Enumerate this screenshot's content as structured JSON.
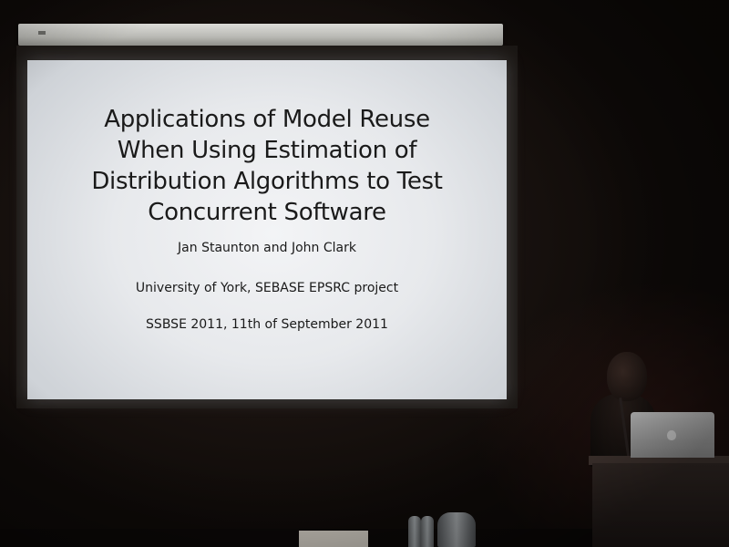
{
  "slide": {
    "title_lines": [
      "Applications of Model Reuse",
      "When Using Estimation of",
      "Distribution Algorithms to Test",
      "Concurrent Software"
    ],
    "authors": "Jan Staunton and John Clark",
    "affiliation": "University of York, SEBASE EPSRC project",
    "conference": "SSBSE 2011, 11th of September 2011"
  },
  "colors": {
    "slide_background": "#eceef1",
    "slide_text": "#1a1a1a",
    "room": "#120d0b"
  },
  "icons": {
    "laptop_logo": "apple-icon"
  }
}
